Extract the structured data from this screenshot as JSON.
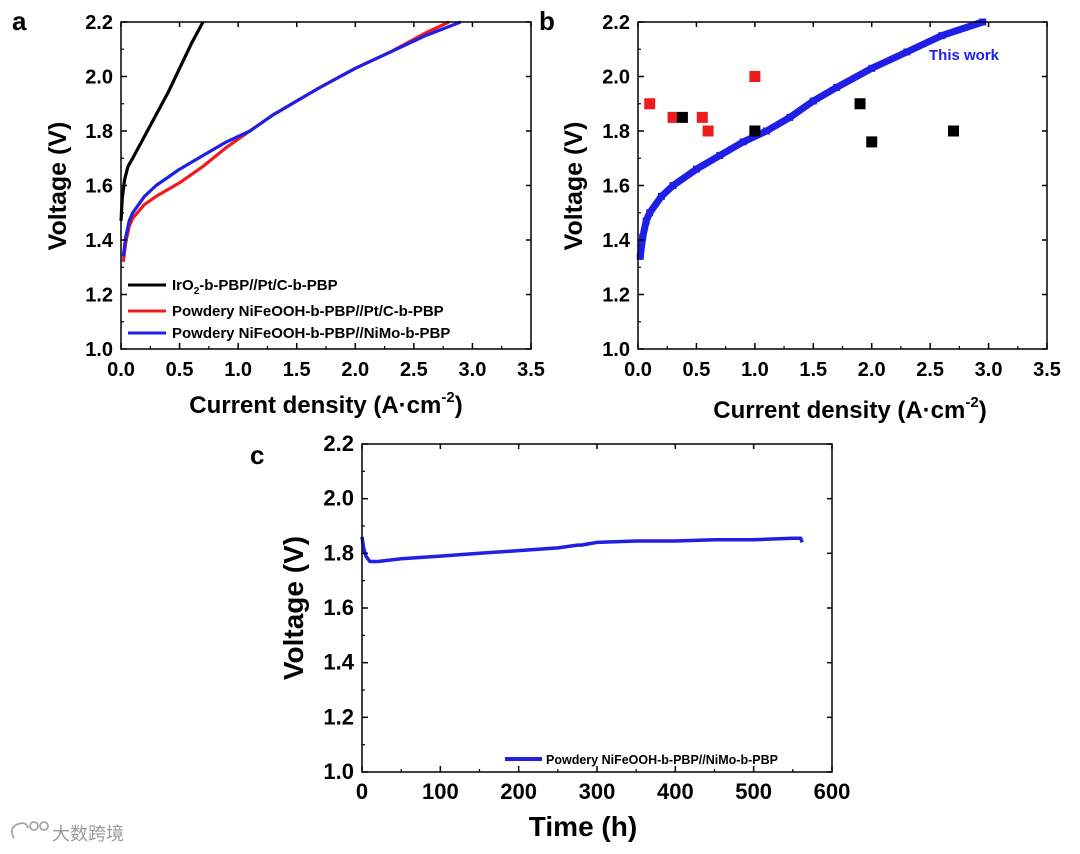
{
  "chart_data": [
    {
      "panel": "a",
      "type": "line",
      "xlabel_main": "Current density (A·cm",
      "xlabel_sup": "-2",
      "xlabel_end": ")",
      "ylabel": "Voltage (V)",
      "xlim": [
        0.0,
        3.5
      ],
      "ylim": [
        1.0,
        2.2
      ],
      "xticks": [
        "0.0",
        "0.5",
        "1.0",
        "1.5",
        "2.0",
        "2.5",
        "3.0",
        "3.5"
      ],
      "yticks": [
        "1.0",
        "1.2",
        "1.4",
        "1.6",
        "1.8",
        "2.0",
        "2.2"
      ],
      "legend_position": "bottom-left",
      "legend": [
        {
          "label_pre": "IrO",
          "label_sub": "2",
          "label_post": "-b-PBP//Pt/C-b-PBP",
          "color": "#000000"
        },
        {
          "label_pre": "Powdery NiFeOOH-b-PBP//Pt/C-b-PBP",
          "label_sub": "",
          "label_post": "",
          "color": "#ee1c1c"
        },
        {
          "label_pre": "Powdery NiFeOOH-b-PBP//NiMo-b-PBP",
          "label_sub": "",
          "label_post": "",
          "color": "#1f1fe6"
        }
      ],
      "series": [
        {
          "name": "IrO2-b-PBP//Pt/C-b-PBP",
          "color": "#000000",
          "x": [
            0.0,
            0.01,
            0.03,
            0.06,
            0.1,
            0.2,
            0.3,
            0.4,
            0.5,
            0.6,
            0.7
          ],
          "y": [
            1.47,
            1.55,
            1.62,
            1.67,
            1.7,
            1.78,
            1.86,
            1.94,
            2.03,
            2.12,
            2.2
          ]
        },
        {
          "name": "Powdery NiFeOOH-b-PBP//Pt/C-b-PBP",
          "color": "#ee1c1c",
          "x": [
            0.02,
            0.04,
            0.07,
            0.1,
            0.2,
            0.3,
            0.5,
            0.7,
            0.9,
            1.1,
            1.3,
            1.5,
            1.7,
            2.0,
            2.3,
            2.6,
            2.8
          ],
          "y": [
            1.32,
            1.39,
            1.45,
            1.48,
            1.53,
            1.56,
            1.61,
            1.67,
            1.74,
            1.8,
            1.86,
            1.91,
            1.96,
            2.03,
            2.09,
            2.16,
            2.2
          ]
        },
        {
          "name": "Powdery NiFeOOH-b-PBP//NiMo-b-PBP",
          "color": "#1f1fe6",
          "x": [
            0.02,
            0.04,
            0.07,
            0.1,
            0.2,
            0.3,
            0.5,
            0.7,
            0.9,
            1.1,
            1.3,
            1.5,
            1.7,
            2.0,
            2.3,
            2.6,
            2.9
          ],
          "y": [
            1.34,
            1.41,
            1.47,
            1.5,
            1.56,
            1.6,
            1.66,
            1.71,
            1.76,
            1.8,
            1.86,
            1.91,
            1.96,
            2.03,
            2.09,
            2.15,
            2.2
          ]
        }
      ]
    },
    {
      "panel": "b",
      "type": "scatter",
      "xlabel_main": "Current density (A·cm",
      "xlabel_sup": "-2",
      "xlabel_end": ")",
      "ylabel": "Voltage (V)",
      "xlim": [
        0.0,
        3.5
      ],
      "ylim": [
        1.0,
        2.2
      ],
      "xticks": [
        "0.0",
        "0.5",
        "1.0",
        "1.5",
        "2.0",
        "2.5",
        "3.0",
        "3.5"
      ],
      "yticks": [
        "1.0",
        "1.2",
        "1.4",
        "1.6",
        "1.8",
        "2.0",
        "2.2"
      ],
      "annotation": "This work",
      "annotation_color": "#1f1fe6",
      "series": [
        {
          "name": "This work",
          "color": "#1f1fe6",
          "x": [
            0.02,
            0.04,
            0.07,
            0.1,
            0.2,
            0.3,
            0.5,
            0.7,
            0.9,
            1.1,
            1.3,
            1.5,
            1.7,
            2.0,
            2.3,
            2.6,
            2.95
          ],
          "y": [
            1.34,
            1.41,
            1.47,
            1.5,
            1.56,
            1.6,
            1.66,
            1.71,
            1.76,
            1.8,
            1.85,
            1.91,
            1.96,
            2.03,
            2.09,
            2.15,
            2.2
          ]
        },
        {
          "name": "Red markers",
          "color": "#ee1c1c",
          "x": [
            0.1,
            0.3,
            0.55,
            0.6,
            1.0
          ],
          "y": [
            1.9,
            1.85,
            1.85,
            1.8,
            2.0
          ]
        },
        {
          "name": "Black markers",
          "color": "#000000",
          "x": [
            0.38,
            1.0,
            1.9,
            2.0,
            2.7
          ],
          "y": [
            1.85,
            1.8,
            1.9,
            1.76,
            1.8
          ]
        }
      ]
    },
    {
      "panel": "c",
      "type": "line",
      "xlabel_main": "Time (h)",
      "xlabel_sup": "",
      "xlabel_end": "",
      "ylabel": "Voltage (V)",
      "xlim": [
        0,
        600
      ],
      "ylim": [
        1.0,
        2.2
      ],
      "xticks": [
        "0",
        "100",
        "200",
        "300",
        "400",
        "500",
        "600"
      ],
      "yticks": [
        "1.0",
        "1.2",
        "1.4",
        "1.6",
        "1.8",
        "2.0",
        "2.2"
      ],
      "legend_position": "bottom-right",
      "legend": [
        {
          "label_pre": "Powdery NiFeOOH-b-PBP//NiMo-b-PBP",
          "label_sub": "",
          "label_post": "",
          "color": "#1f1fe6"
        }
      ],
      "series": [
        {
          "name": "Powdery NiFeOOH-b-PBP//NiMo-b-PBP",
          "color": "#1f1fe6",
          "x": [
            0,
            2,
            5,
            10,
            20,
            50,
            100,
            150,
            200,
            250,
            275,
            280,
            300,
            350,
            400,
            450,
            500,
            550,
            560,
            562
          ],
          "y": [
            1.86,
            1.82,
            1.79,
            1.77,
            1.77,
            1.78,
            1.79,
            1.8,
            1.81,
            1.82,
            1.83,
            1.83,
            1.84,
            1.845,
            1.845,
            1.85,
            1.85,
            1.855,
            1.855,
            1.84
          ]
        }
      ]
    }
  ],
  "watermark": "大数跨境"
}
